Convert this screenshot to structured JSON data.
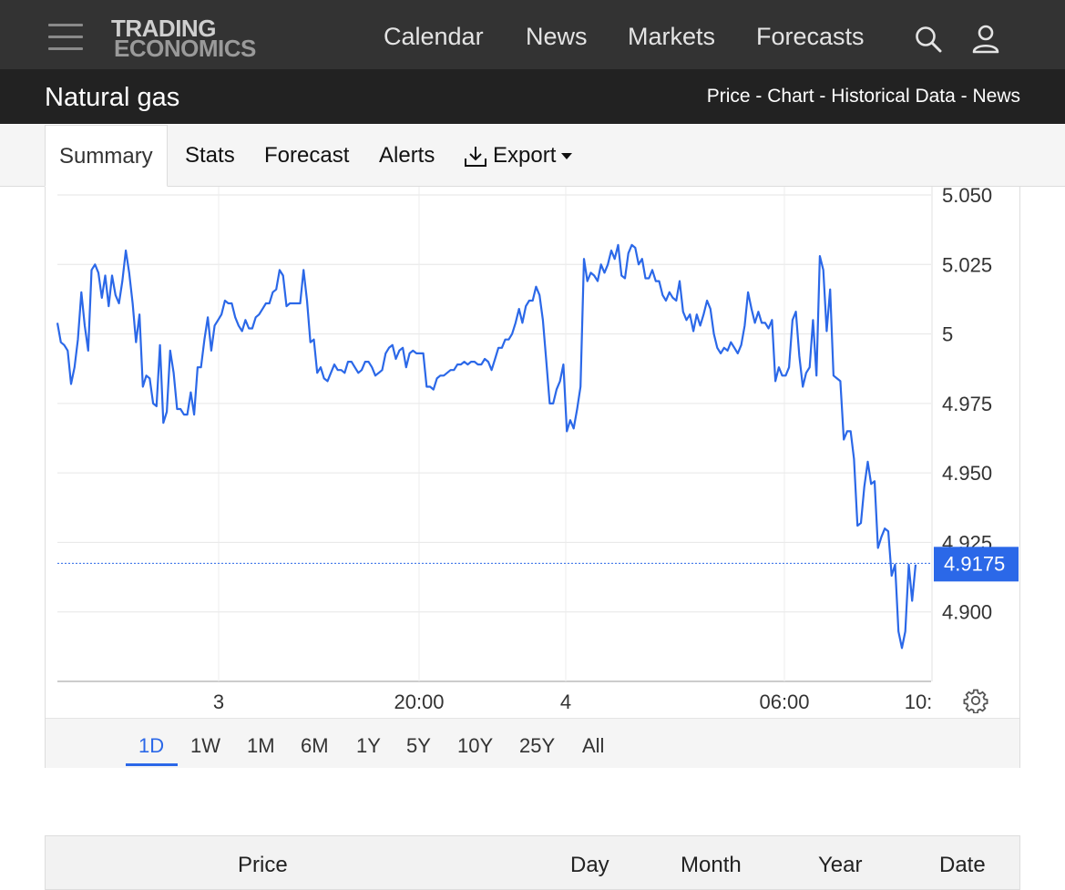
{
  "nav": {
    "logo_line1": "TRADING",
    "logo_line2": "ECONOMICS",
    "links": [
      "Calendar",
      "News",
      "Markets",
      "Forecasts"
    ],
    "icons": [
      "menu-icon",
      "search-icon",
      "user-icon"
    ]
  },
  "titlebar": {
    "title": "Natural gas",
    "sublinks": [
      "Price",
      "Chart",
      "Historical Data",
      "News"
    ],
    "separator": " - "
  },
  "tabs": {
    "items": [
      "Summary",
      "Stats",
      "Forecast",
      "Alerts",
      "Export"
    ],
    "active": "Summary"
  },
  "chart_data": {
    "type": "line",
    "x_tick_labels": [
      "3",
      "20:00",
      "4",
      "06:00",
      "10:"
    ],
    "y_tick_labels": [
      "5.050",
      "5.025",
      "5",
      "4.975",
      "4.950",
      "4.925",
      "4.900"
    ],
    "ylim": [
      4.875,
      5.05
    ],
    "last_value": "4.9175",
    "line_color": "#2b68e8",
    "grid": true,
    "series": [
      {
        "values": [
          5.004,
          4.997,
          4.996,
          4.994,
          4.982,
          4.988,
          4.998,
          5.015,
          5.003,
          4.994,
          5.023,
          5.025,
          5.022,
          5.013,
          5.021,
          5.01,
          5.021,
          5.014,
          5.011,
          5.019,
          5.03,
          5.022,
          5.011,
          4.997,
          5.007,
          4.981,
          4.985,
          4.984,
          4.975,
          4.974,
          4.996,
          4.968,
          4.972,
          4.994,
          4.986,
          4.973,
          4.973,
          4.971,
          4.971,
          4.979,
          4.971,
          4.988,
          4.988,
          4.998,
          5.006,
          4.994,
          5.003,
          5.005,
          5.007,
          5.012,
          5.011,
          5.011,
          5.006,
          5.003,
          5.001,
          5.005,
          5.002,
          5.002,
          5.006,
          5.007,
          5.009,
          5.011,
          5.011,
          5.015,
          5.016,
          5.023,
          5.021,
          5.01,
          5.011,
          5.011,
          5.011,
          5.011,
          5.023,
          5.012,
          4.997,
          4.998,
          4.986,
          4.988,
          4.984,
          4.983,
          4.986,
          4.989,
          4.987,
          4.987,
          4.986,
          4.99,
          4.99,
          4.988,
          4.986,
          4.987,
          4.99,
          4.99,
          4.988,
          4.985,
          4.986,
          4.987,
          4.993,
          4.995,
          4.996,
          4.991,
          4.994,
          4.995,
          4.988,
          4.993,
          4.994,
          4.993,
          4.993,
          4.993,
          4.981,
          4.981,
          4.98,
          4.984,
          4.985,
          4.985,
          4.986,
          4.987,
          4.987,
          4.989,
          4.989,
          4.99,
          4.989,
          4.99,
          4.99,
          4.989,
          4.989,
          4.991,
          4.99,
          4.987,
          4.991,
          4.995,
          4.995,
          4.998,
          4.998,
          5.0,
          5.004,
          5.009,
          5.004,
          5.01,
          5.012,
          5.012,
          5.017,
          5.014,
          5.005,
          4.99,
          4.975,
          4.975,
          4.98,
          4.983,
          4.989,
          4.965,
          4.969,
          4.966,
          4.973,
          4.981,
          5.027,
          5.019,
          5.022,
          5.021,
          5.019,
          5.025,
          5.022,
          5.025,
          5.03,
          5.027,
          5.032,
          5.021,
          5.02,
          5.029,
          5.032,
          5.031,
          5.025,
          5.027,
          5.02,
          5.02,
          5.023,
          5.019,
          5.019,
          5.014,
          5.012,
          5.015,
          5.013,
          5.012,
          5.019,
          5.008,
          5.005,
          5.007,
          5.001,
          5.007,
          5.003,
          5.007,
          5.012,
          5.009,
          5.0,
          4.995,
          4.993,
          4.995,
          4.994,
          4.997,
          4.995,
          4.993,
          4.996,
          5.003,
          5.015,
          5.009,
          5.004,
          5.008,
          5.004,
          5.004,
          5.002,
          5.005,
          4.983,
          4.988,
          4.985,
          4.985,
          4.988,
          5.005,
          5.008,
          4.992,
          4.981,
          4.986,
          4.988,
          5.005,
          4.985,
          5.028,
          5.023,
          5.001,
          5.016,
          4.985,
          4.984,
          4.983,
          4.962,
          4.965,
          4.965,
          4.955,
          4.931,
          4.932,
          4.945,
          4.954,
          4.946,
          4.947,
          4.923,
          4.927,
          4.93,
          4.929,
          4.913,
          4.917,
          4.893,
          4.887,
          4.893,
          4.917,
          4.904,
          4.917
        ]
      }
    ]
  },
  "settings_icon": "gear-icon",
  "ranges": {
    "items": [
      "1D",
      "1W",
      "1M",
      "6M",
      "1Y",
      "5Y",
      "10Y",
      "25Y",
      "All"
    ],
    "active": "1D"
  },
  "table": {
    "headers": [
      "Price",
      "Day",
      "Month",
      "Year",
      "Date"
    ]
  }
}
